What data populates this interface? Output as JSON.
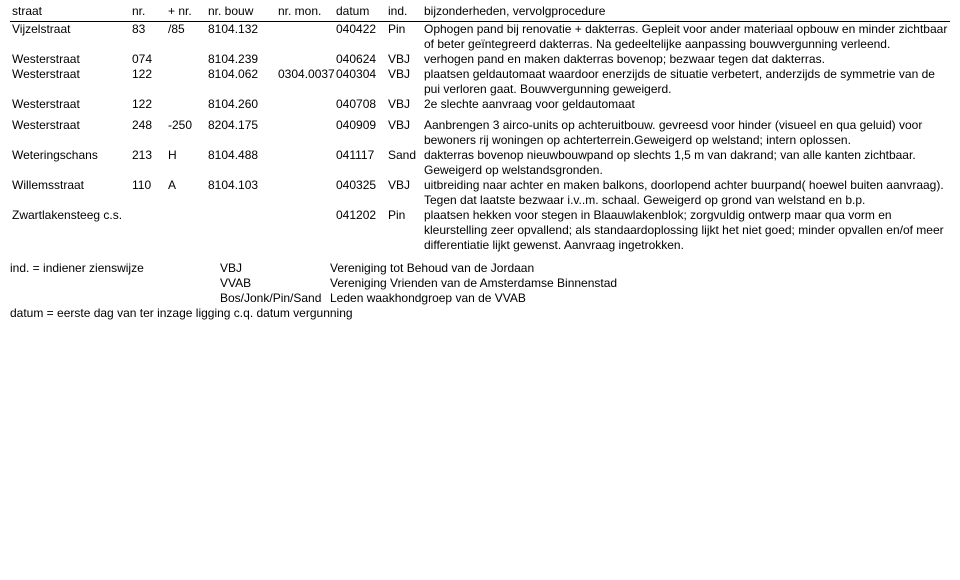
{
  "header": {
    "straat": "straat",
    "nr": "nr.",
    "pnr": "+ nr.",
    "bouw": "nr. bouw",
    "mon": "nr. mon.",
    "datum": "datum",
    "ind": "ind.",
    "bij": "bijzonderheden, vervolgprocedure"
  },
  "rows": [
    {
      "straat": "Vijzelstraat",
      "nr": "83",
      "pnr": "/85",
      "bouw": "8104.132",
      "mon": "",
      "datum": "040422",
      "ind": "Pin",
      "bij": "Ophogen pand bij renovatie + dakterras. Gepleit voor ander materiaal opbouw en minder zichtbaar of beter geïntegreerd dakterras. Na gedeeltelijke aanpassing bouwvergunning verleend."
    },
    {
      "straat": "Westerstraat",
      "nr": "074",
      "pnr": "",
      "bouw": "8104.239",
      "mon": "",
      "datum": "040624",
      "ind": "VBJ",
      "bij": "verhogen pand en maken dakterras bovenop; bezwaar tegen dat dakterras."
    },
    {
      "straat": "Westerstraat",
      "nr": "122",
      "pnr": "",
      "bouw": "8104.062",
      "mon": "0304.0037",
      "datum": "040304",
      "ind": "VBJ",
      "bij": "plaatsen geldautomaat waardoor enerzijds de situatie verbetert, anderzijds de symmetrie van de pui verloren gaat. Bouwvergunning geweigerd."
    },
    {
      "straat": "Westerstraat",
      "nr": "122",
      "pnr": "",
      "bouw": "8104.260",
      "mon": "",
      "datum": "040708",
      "ind": "VBJ",
      "bij": "2e slechte aanvraag voor geldautomaat"
    },
    {
      "straat": "Westerstraat",
      "nr": "248",
      "pnr": "-250",
      "bouw": "8204.175",
      "mon": "",
      "datum": "040909",
      "ind": "VBJ",
      "bij": "Aanbrengen 3 airco-units op achteruitbouw. gevreesd voor hinder (visueel en qua geluid) voor bewoners rij woningen op  achterterrein.Geweigerd op welstand; intern oplossen."
    },
    {
      "straat": "Weteringschans",
      "nr": "213",
      "pnr": "H",
      "bouw": "8104.488",
      "mon": "",
      "datum": "041117",
      "ind": "Sand",
      "bij": "dakterras bovenop nieuwbouwpand op slechts 1,5 m van dakrand; van alle kanten zichtbaar. Geweigerd op welstandsgronden."
    },
    {
      "straat": "Willemsstraat",
      "nr": "110",
      "pnr": "A",
      "bouw": "8104.103",
      "mon": "",
      "datum": "040325",
      "ind": "VBJ",
      "bij": "uitbreiding naar achter en maken balkons, doorlopend achter buurpand( hoewel buiten aanvraag). Tegen dat laatste bezwaar i.v..m. schaal. Geweigerd op grond van welstand en b.p."
    },
    {
      "straat": "Zwartlakensteeg c.s.",
      "nr": "",
      "pnr": "",
      "bouw": "",
      "mon": "",
      "datum": "041202",
      "ind": "Pin",
      "bij": "plaatsen hekken voor stegen in Blaauwlakenblok; zorgvuldig ontwerp maar qua vorm en kleurstelling zeer opvallend; als standaardoplossing lijkt het niet goed; minder opvallen en/of meer differentiatie lijkt gewenst. Aanvraag ingetrokken."
    }
  ],
  "footer": {
    "line1a": "ind. = indiener zienswijze",
    "line1b": "VBJ",
    "line1c": "Vereniging tot Behoud van de Jordaan",
    "line2b": "VVAB",
    "line2c": "Vereniging Vrienden van de Amsterdamse Binnenstad",
    "line3b": "Bos/Jonk/Pin/Sand",
    "line3c": "Leden waakhondgroep van de VVAB",
    "line4": "datum = eerste dag van ter inzage ligging c.q. datum vergunning"
  }
}
